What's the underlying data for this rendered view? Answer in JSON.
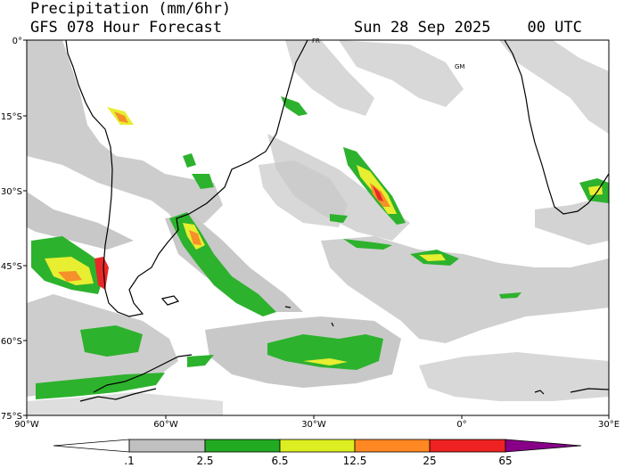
{
  "header": {
    "title": "Precipitation (mm/6hr)",
    "subtitle": "GFS 078 Hour Forecast",
    "datetime": "Sun 28 Sep 2025    00 UTC"
  },
  "map": {
    "lon_ticks": [
      "90°W",
      "60°W",
      "30°W",
      "0°",
      "30°E"
    ],
    "lat_ticks": [
      "0°",
      "15°S",
      "30°S",
      "45°S",
      "60°S",
      "75°S"
    ],
    "place_labels": [
      "FR",
      "GM"
    ]
  },
  "colorbar": {
    "breaks": [
      ".1",
      "2.5",
      "6.5",
      "12.5",
      "25",
      "65"
    ],
    "colors": [
      "#ffffff",
      "#c0c0c0",
      "#22aa22",
      "#ddee22",
      "#ff8822",
      "#ee2222",
      "#880088"
    ]
  },
  "colors": {
    "light": "#c8c8c8",
    "green": "#2db22d",
    "yellow": "#e8ee30",
    "orange": "#f5902a",
    "red": "#e82828",
    "coast": "#000000"
  }
}
